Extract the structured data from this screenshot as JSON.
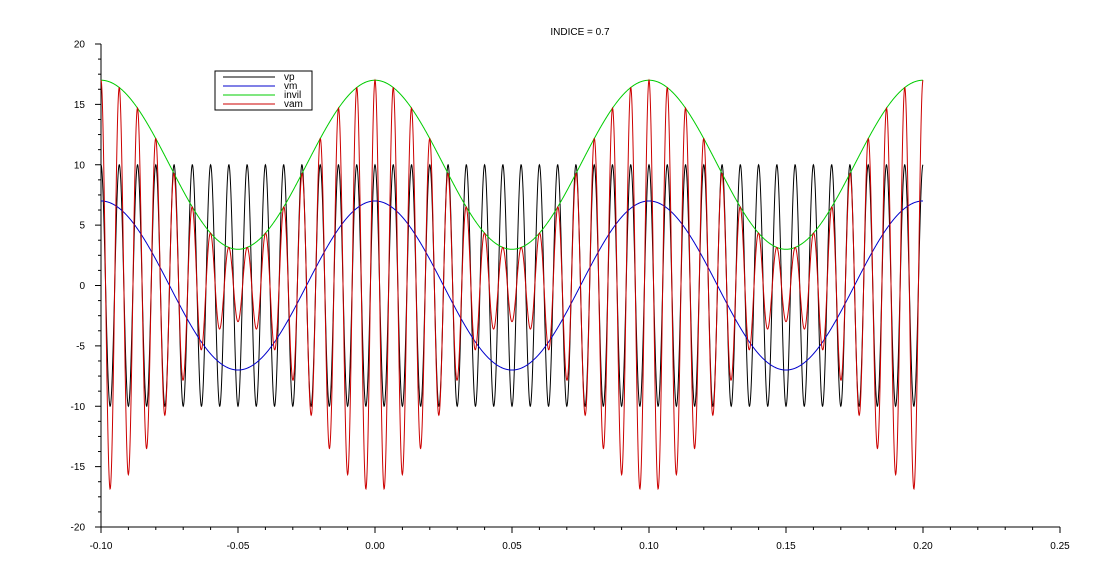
{
  "chart_data": {
    "type": "line",
    "title": "INDICE = 0.7",
    "xlabel": "",
    "ylabel": "",
    "xlim": [
      -0.1,
      0.25
    ],
    "ylim": [
      -20,
      20
    ],
    "xticks": [
      -0.1,
      -0.05,
      0.0,
      0.05,
      0.1,
      0.15,
      0.2,
      0.25
    ],
    "xtick_labels": [
      "-0.10",
      "-0.05",
      "0.00",
      "0.05",
      "0.10",
      "0.15",
      "0.20",
      "0.25"
    ],
    "yticks": [
      -20,
      -15,
      -10,
      -5,
      0,
      5,
      10,
      15,
      20
    ],
    "ytick_labels": [
      "-20",
      "-15",
      "-10",
      "-5",
      "0",
      "5",
      "10",
      "15",
      "20"
    ],
    "grid": false,
    "legend_position": "top-left",
    "x_range_plotted": [
      -0.1,
      0.2
    ],
    "series": [
      {
        "name": "vp",
        "color": "#000000",
        "formula": "10*cos(2*pi*150*t)",
        "amplitude": 10,
        "frequency_hz": 150
      },
      {
        "name": "vm",
        "color": "#0000cc",
        "formula": "7*cos(2*pi*10*t)",
        "amplitude": 7,
        "frequency_hz": 10
      },
      {
        "name": "invil",
        "color": "#00cc00",
        "formula": "10 + 7*cos(2*pi*10*t)",
        "offset": 10,
        "amplitude": 7,
        "frequency_hz": 10
      },
      {
        "name": "vam",
        "color": "#cc0000",
        "formula": "(10 + 7*cos(2*pi*10*t))*cos(2*pi*150*t)",
        "modulation_index": 0.7
      }
    ]
  }
}
